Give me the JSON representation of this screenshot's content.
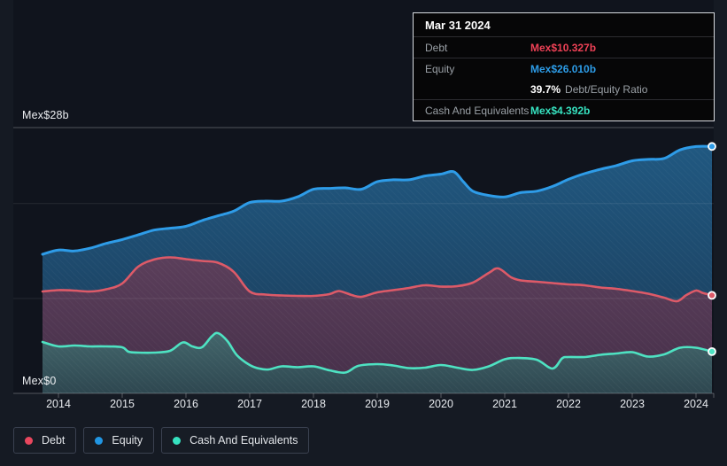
{
  "tooltip": {
    "date": "Mar 31 2024",
    "debt_label": "Debt",
    "debt_value": "Mex$10.327b",
    "debt_color": "#ee4156",
    "equity_label": "Equity",
    "equity_value": "Mex$26.010b",
    "equity_color": "#2d9ce7",
    "ratio_value": "39.7%",
    "ratio_text": "Debt/Equity Ratio",
    "cash_label": "Cash And Equivalents",
    "cash_value": "Mex$4.392b",
    "cash_color": "#36e2c0"
  },
  "legend": {
    "debt": {
      "label": "Debt",
      "color": "#e9475e"
    },
    "equity": {
      "label": "Equity",
      "color": "#2196e3"
    },
    "cash": {
      "label": "Cash And Equivalents",
      "color": "#36e2c0"
    }
  },
  "chart_data": {
    "type": "area",
    "description": "Debt, Equity and Cash And Equivalents history, Mex$ billions, late 2013 to Mar 31 2024",
    "x_axis": {
      "min": 2013.75,
      "max": 2024.3,
      "ticks": [
        2014,
        2015,
        2016,
        2017,
        2018,
        2019,
        2020,
        2021,
        2022,
        2023,
        2024
      ]
    },
    "y_axis": {
      "min": 0,
      "max": 28,
      "unit": "Mex$ b",
      "top_label": "Mex$28b",
      "bottom_label": "Mex$0",
      "gridline_values": [
        28,
        20,
        10,
        0
      ]
    },
    "legend_position": "bottom-left",
    "series": [
      {
        "name": "Equity",
        "color": "#2e9ce8",
        "fill": "#1e4f73",
        "line_width": 3,
        "points": [
          [
            2013.75,
            14.65
          ],
          [
            2014,
            15.1
          ],
          [
            2014.25,
            15.0
          ],
          [
            2014.5,
            15.3
          ],
          [
            2014.75,
            15.8
          ],
          [
            2015,
            16.2
          ],
          [
            2015.25,
            16.7
          ],
          [
            2015.5,
            17.2
          ],
          [
            2015.75,
            17.4
          ],
          [
            2016,
            17.6
          ],
          [
            2016.25,
            18.2
          ],
          [
            2016.5,
            18.7
          ],
          [
            2016.75,
            19.2
          ],
          [
            2017,
            20.1
          ],
          [
            2017.25,
            20.25
          ],
          [
            2017.5,
            20.25
          ],
          [
            2017.75,
            20.7
          ],
          [
            2018,
            21.5
          ],
          [
            2018.25,
            21.6
          ],
          [
            2018.5,
            21.65
          ],
          [
            2018.75,
            21.5
          ],
          [
            2019,
            22.3
          ],
          [
            2019.25,
            22.5
          ],
          [
            2019.5,
            22.5
          ],
          [
            2019.75,
            22.9
          ],
          [
            2020,
            23.1
          ],
          [
            2020.2,
            23.35
          ],
          [
            2020.35,
            22.3
          ],
          [
            2020.5,
            21.3
          ],
          [
            2020.75,
            20.85
          ],
          [
            2021,
            20.7
          ],
          [
            2021.25,
            21.15
          ],
          [
            2021.5,
            21.3
          ],
          [
            2021.75,
            21.8
          ],
          [
            2022,
            22.55
          ],
          [
            2022.25,
            23.15
          ],
          [
            2022.5,
            23.6
          ],
          [
            2022.75,
            24.0
          ],
          [
            2023,
            24.5
          ],
          [
            2023.25,
            24.65
          ],
          [
            2023.5,
            24.75
          ],
          [
            2023.75,
            25.65
          ],
          [
            2024,
            26.0
          ],
          [
            2024.25,
            26.01
          ]
        ]
      },
      {
        "name": "Debt",
        "color": "#dd5a68",
        "fill": "#533a55",
        "line_width": 2.6,
        "points": [
          [
            2013.75,
            10.73
          ],
          [
            2014,
            10.87
          ],
          [
            2014.25,
            10.83
          ],
          [
            2014.5,
            10.73
          ],
          [
            2014.75,
            10.97
          ],
          [
            2015,
            11.57
          ],
          [
            2015.25,
            13.35
          ],
          [
            2015.5,
            14.1
          ],
          [
            2015.75,
            14.33
          ],
          [
            2016,
            14.14
          ],
          [
            2016.25,
            13.95
          ],
          [
            2016.5,
            13.77
          ],
          [
            2016.75,
            12.8
          ],
          [
            2017,
            10.73
          ],
          [
            2017.25,
            10.41
          ],
          [
            2017.5,
            10.31
          ],
          [
            2017.75,
            10.27
          ],
          [
            2018,
            10.27
          ],
          [
            2018.25,
            10.45
          ],
          [
            2018.4,
            10.78
          ],
          [
            2018.6,
            10.36
          ],
          [
            2018.75,
            10.17
          ],
          [
            2019,
            10.64
          ],
          [
            2019.25,
            10.87
          ],
          [
            2019.5,
            11.11
          ],
          [
            2019.75,
            11.39
          ],
          [
            2020,
            11.25
          ],
          [
            2020.25,
            11.29
          ],
          [
            2020.5,
            11.67
          ],
          [
            2020.75,
            12.69
          ],
          [
            2020.9,
            13.16
          ],
          [
            2021.1,
            12.23
          ],
          [
            2021.25,
            11.9
          ],
          [
            2021.5,
            11.76
          ],
          [
            2021.75,
            11.62
          ],
          [
            2022,
            11.48
          ],
          [
            2022.25,
            11.39
          ],
          [
            2022.5,
            11.15
          ],
          [
            2022.75,
            11.01
          ],
          [
            2023,
            10.78
          ],
          [
            2023.25,
            10.5
          ],
          [
            2023.5,
            10.08
          ],
          [
            2023.7,
            9.71
          ],
          [
            2023.85,
            10.36
          ],
          [
            2024,
            10.83
          ],
          [
            2024.1,
            10.59
          ],
          [
            2024.25,
            10.327
          ]
        ]
      },
      {
        "name": "Cash And Equivalents",
        "color": "#4ee2c2",
        "fill": "#3d5f66",
        "line_width": 2.6,
        "points": [
          [
            2013.75,
            5.41
          ],
          [
            2014,
            4.95
          ],
          [
            2014.25,
            5.04
          ],
          [
            2014.5,
            4.95
          ],
          [
            2014.75,
            4.95
          ],
          [
            2015,
            4.85
          ],
          [
            2015.1,
            4.39
          ],
          [
            2015.25,
            4.29
          ],
          [
            2015.5,
            4.29
          ],
          [
            2015.75,
            4.48
          ],
          [
            2015.95,
            5.37
          ],
          [
            2016.1,
            4.95
          ],
          [
            2016.25,
            4.85
          ],
          [
            2016.4,
            5.97
          ],
          [
            2016.5,
            6.35
          ],
          [
            2016.65,
            5.51
          ],
          [
            2016.8,
            4.01
          ],
          [
            2017,
            2.99
          ],
          [
            2017.15,
            2.61
          ],
          [
            2017.3,
            2.52
          ],
          [
            2017.5,
            2.85
          ],
          [
            2017.75,
            2.75
          ],
          [
            2018,
            2.85
          ],
          [
            2018.25,
            2.43
          ],
          [
            2018.5,
            2.19
          ],
          [
            2018.7,
            2.89
          ],
          [
            2019,
            3.08
          ],
          [
            2019.25,
            2.94
          ],
          [
            2019.5,
            2.66
          ],
          [
            2019.75,
            2.71
          ],
          [
            2020,
            2.99
          ],
          [
            2020.25,
            2.71
          ],
          [
            2020.5,
            2.47
          ],
          [
            2020.75,
            2.85
          ],
          [
            2021,
            3.59
          ],
          [
            2021.2,
            3.73
          ],
          [
            2021.5,
            3.55
          ],
          [
            2021.75,
            2.61
          ],
          [
            2021.9,
            3.69
          ],
          [
            2022,
            3.83
          ],
          [
            2022.25,
            3.83
          ],
          [
            2022.5,
            4.06
          ],
          [
            2022.75,
            4.2
          ],
          [
            2023,
            4.34
          ],
          [
            2023.25,
            3.87
          ],
          [
            2023.5,
            4.11
          ],
          [
            2023.75,
            4.81
          ],
          [
            2024,
            4.81
          ],
          [
            2024.25,
            4.392
          ]
        ]
      }
    ]
  }
}
